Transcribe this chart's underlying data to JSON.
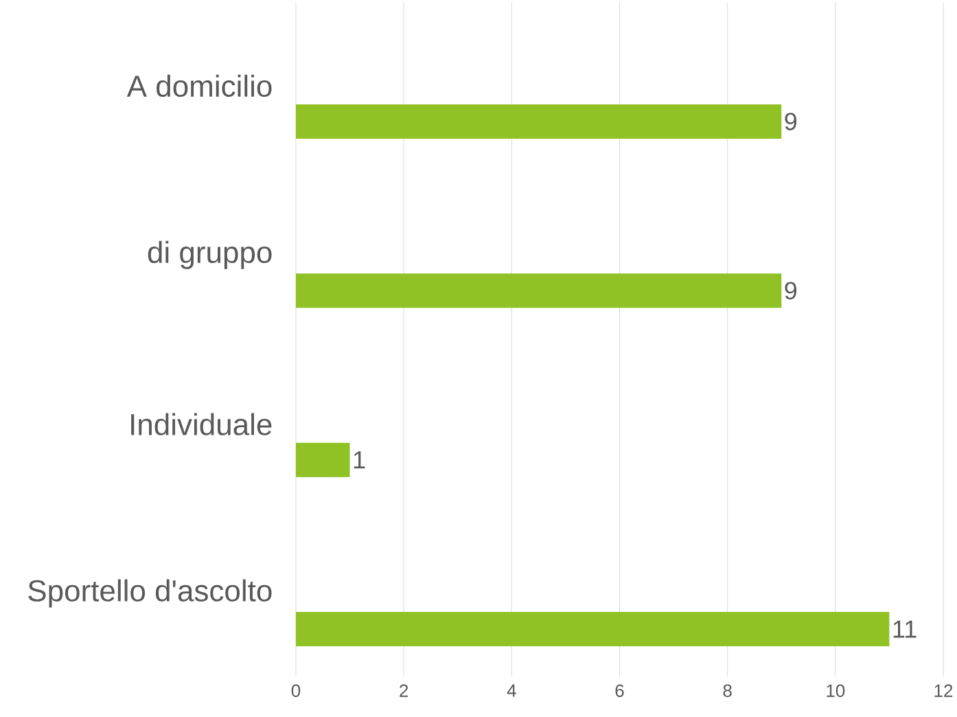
{
  "chart_data": {
    "type": "bar",
    "orientation": "horizontal",
    "categories": [
      "A domicilio",
      "di gruppo",
      "Individuale",
      "Sportello d'ascolto"
    ],
    "values": [
      9,
      9,
      1,
      11
    ],
    "color": "#90c226",
    "xlim": [
      0,
      12
    ],
    "xticks": [
      0,
      2,
      4,
      6,
      8,
      10,
      12
    ],
    "grid": "x",
    "data_labels": true
  }
}
